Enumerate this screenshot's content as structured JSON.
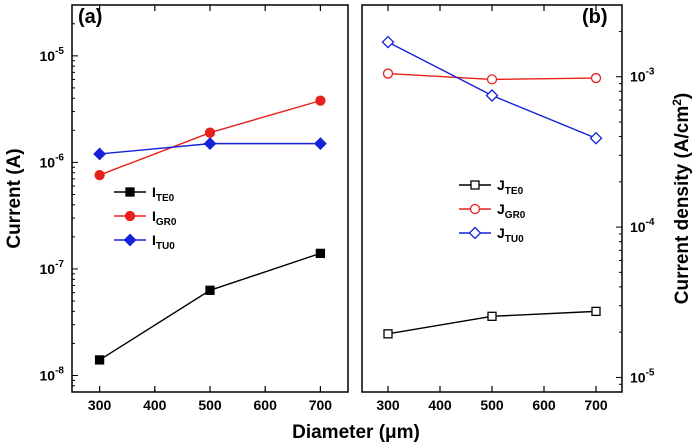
{
  "figure": {
    "shared_xlabel": "Diameter (μm)"
  },
  "chart_data": [
    {
      "type": "line",
      "panel_label": "(a)",
      "ylabel": "Current (A)",
      "yscale": "log",
      "xlim": [
        250,
        750
      ],
      "ylim": [
        7e-09,
        3e-05
      ],
      "x_ticks": [
        300,
        400,
        500,
        600,
        700
      ],
      "x_tick_labels": [
        "300",
        "400",
        "500",
        "600",
        "700"
      ],
      "y_ticks": [
        1e-08,
        1e-07,
        1e-06,
        1e-05
      ],
      "y_tick_labels": [
        {
          "base": "10",
          "exp": "-8"
        },
        {
          "base": "10",
          "exp": "-7"
        },
        {
          "base": "10",
          "exp": "-6"
        },
        {
          "base": "10",
          "exp": "-5"
        }
      ],
      "legend_position": "center-left",
      "x": [
        300,
        500,
        700
      ],
      "series": [
        {
          "name_main": "I",
          "name_sub": "TE0",
          "color": "#000000",
          "marker": "square",
          "filled": true,
          "values": [
            1.4e-08,
            6.3e-08,
            1.4e-07
          ]
        },
        {
          "name_main": "I",
          "name_sub": "GR0",
          "color": "#e8201a",
          "marker": "circle",
          "filled": true,
          "values": [
            7.6e-07,
            1.9e-06,
            3.8e-06
          ]
        },
        {
          "name_main": "I",
          "name_sub": "TU0",
          "color": "#1522d8",
          "marker": "diamond",
          "filled": true,
          "values": [
            1.2e-06,
            1.5e-06,
            1.5e-06
          ]
        }
      ]
    },
    {
      "type": "line",
      "panel_label": "(b)",
      "ylabel_main": "Current density (A/cm",
      "ylabel_sup": "2",
      "ylabel_end": ")",
      "yscale": "log",
      "xlim": [
        250,
        750
      ],
      "ylim": [
        8e-06,
        0.003
      ],
      "x_ticks": [
        300,
        400,
        500,
        600,
        700
      ],
      "x_tick_labels": [
        "300",
        "400",
        "500",
        "600",
        "700"
      ],
      "y_ticks": [
        1e-05,
        0.0001,
        0.001
      ],
      "y_tick_labels": [
        {
          "base": "10",
          "exp": "-5"
        },
        {
          "base": "10",
          "exp": "-4"
        },
        {
          "base": "10",
          "exp": "-3"
        }
      ],
      "legend_position": "center-right",
      "x": [
        300,
        500,
        700
      ],
      "series": [
        {
          "name_main": "J",
          "name_sub": "TE0",
          "color": "#000000",
          "marker": "square",
          "filled": false,
          "values": [
            1.95e-05,
            2.55e-05,
            2.75e-05
          ]
        },
        {
          "name_main": "J",
          "name_sub": "GR0",
          "color": "#e8201a",
          "marker": "circle",
          "filled": false,
          "values": [
            0.00105,
            0.00096,
            0.00098
          ]
        },
        {
          "name_main": "J",
          "name_sub": "TU0",
          "color": "#1522d8",
          "marker": "diamond",
          "filled": false,
          "values": [
            0.0017,
            0.00075,
            0.00039
          ]
        }
      ]
    }
  ]
}
